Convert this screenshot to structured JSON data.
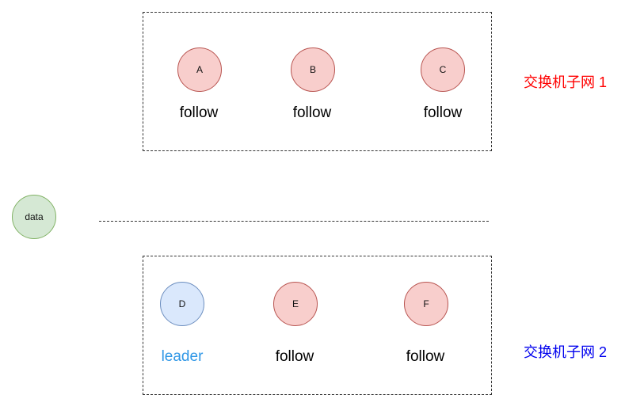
{
  "colors": {
    "follower_fill": "#f8cecc",
    "follower_stroke": "#b85450",
    "leader_fill": "#dae8fc",
    "leader_stroke": "#6c8ebf",
    "data_fill": "#d5e8d4",
    "data_stroke": "#82b366",
    "leader_text": "#2f97e6",
    "net1_text": "#ff0000",
    "net2_text": "#0000ee"
  },
  "data_node": {
    "label": "data"
  },
  "subnets": [
    {
      "label": "交换机子网 1",
      "nodes": [
        {
          "id": "A",
          "role": "follow"
        },
        {
          "id": "B",
          "role": "follow"
        },
        {
          "id": "C",
          "role": "follow"
        }
      ]
    },
    {
      "label": "交换机子网 2",
      "nodes": [
        {
          "id": "D",
          "role": "leader"
        },
        {
          "id": "E",
          "role": "follow"
        },
        {
          "id": "F",
          "role": "follow"
        }
      ]
    }
  ]
}
